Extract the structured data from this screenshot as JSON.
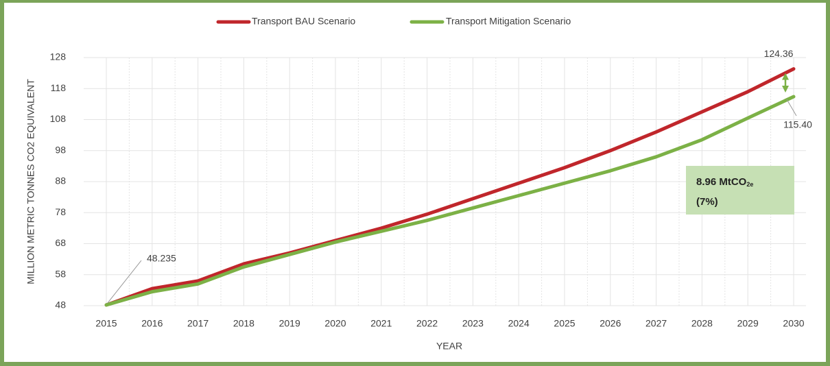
{
  "chart_data": {
    "type": "line",
    "x_label": "YEAR",
    "y_label": "MILLION METRIC  TONNES CO2 EQUIVALENT",
    "categories": [
      "2015",
      "2016",
      "2017",
      "2018",
      "2019",
      "2020",
      "2021",
      "2022",
      "2023",
      "2024",
      "2025",
      "2026",
      "2027",
      "2028",
      "2029",
      "2030"
    ],
    "series": [
      {
        "name": "Transport BAU Scenario",
        "color": "#c0262b",
        "values": [
          48.235,
          53.5,
          56,
          61.5,
          65,
          69,
          73,
          77.5,
          82.5,
          87.5,
          92.5,
          98,
          104,
          110.5,
          117,
          124.36
        ]
      },
      {
        "name": "Transport Mitigation Scenario",
        "color": "#7cb146",
        "values": [
          48.235,
          52.5,
          55,
          60.5,
          64.5,
          68.5,
          72,
          75.5,
          79.5,
          83.5,
          87.5,
          91.5,
          96,
          101.5,
          108.5,
          115.4
        ]
      }
    ],
    "ylim": [
      48,
      128
    ],
    "yticks": [
      48,
      58,
      68,
      78,
      88,
      98,
      108,
      118,
      128
    ],
    "grid": true,
    "legend": "top",
    "annotations": [
      {
        "text": "48.235"
      },
      {
        "text": "124.36"
      },
      {
        "text": "115.40"
      }
    ],
    "callout": {
      "text": "8.96 MtCO",
      "subscript": "2e",
      "line2": "(7%)",
      "color": "#c6e0b4"
    }
  }
}
